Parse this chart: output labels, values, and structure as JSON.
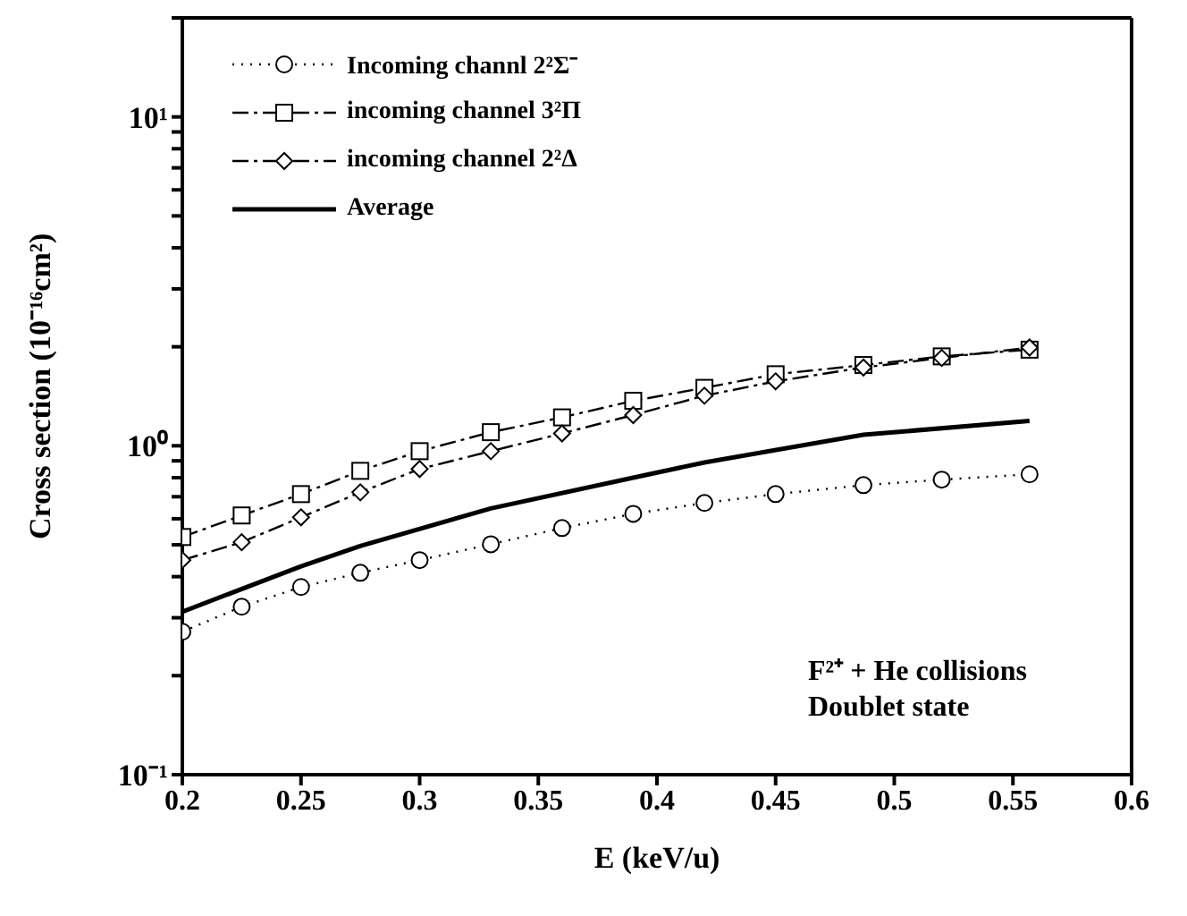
{
  "chart_data": {
    "type": "line",
    "xlabel": "E (keV/u)",
    "ylabel": "Cross section (10⁻¹⁶cm²)",
    "log": "y",
    "x": [
      0.2,
      0.225,
      0.25,
      0.275,
      0.3,
      0.33,
      0.36,
      0.39,
      0.42,
      0.45,
      0.487,
      0.52,
      0.557
    ],
    "series": [
      {
        "name": "Incoming channl 2²Σ⁻",
        "color": "#000000",
        "marker": "circle",
        "line_style": "dotted",
        "values": [
          0.272,
          0.324,
          0.372,
          0.411,
          0.449,
          0.502,
          0.562,
          0.621,
          0.67,
          0.713,
          0.759,
          0.789,
          0.819
        ]
      },
      {
        "name": "incoming channel 3²Π",
        "color": "#000000",
        "marker": "square",
        "line_style": "dashed",
        "values": [
          0.528,
          0.614,
          0.713,
          0.839,
          0.963,
          1.1,
          1.22,
          1.37,
          1.5,
          1.65,
          1.76,
          1.87,
          1.96
        ]
      },
      {
        "name": "incoming channel 2²Δ",
        "color": "#000000",
        "marker": "diamond",
        "line_style": "dashed",
        "values": [
          0.449,
          0.509,
          0.606,
          0.722,
          0.85,
          0.963,
          1.09,
          1.24,
          1.42,
          1.57,
          1.73,
          1.85,
          1.99
        ]
      },
      {
        "name": "Average",
        "color": "#000000",
        "marker": "none",
        "line_style": "solid",
        "x": [
          0.2,
          0.25,
          0.275,
          0.33,
          0.39,
          0.42,
          0.487,
          0.557
        ],
        "values": [
          0.313,
          0.43,
          0.496,
          0.645,
          0.8,
          0.89,
          1.08,
          1.19
        ]
      }
    ],
    "xlim": [
      0.2,
      0.6
    ],
    "xticks": [
      0.2,
      0.25,
      0.3,
      0.35,
      0.4,
      0.45,
      0.5,
      0.55,
      0.6
    ],
    "ylim": [
      0.1,
      20
    ],
    "yticks": [
      {
        "value": 0.1,
        "label": "10⁻¹"
      },
      {
        "value": 0.2,
        "label": null
      },
      {
        "value": 0.3,
        "label": null
      },
      {
        "value": 0.4,
        "label": null
      },
      {
        "value": 0.5,
        "label": null
      },
      {
        "value": 0.6,
        "label": null
      },
      {
        "value": 0.7,
        "label": null
      },
      {
        "value": 0.8,
        "label": null
      },
      {
        "value": 0.9,
        "label": null
      },
      {
        "value": 1,
        "label": "10⁰"
      },
      {
        "value": 2,
        "label": null
      },
      {
        "value": 3,
        "label": null
      },
      {
        "value": 4,
        "label": null
      },
      {
        "value": 5,
        "label": null
      },
      {
        "value": 6,
        "label": null
      },
      {
        "value": 7,
        "label": null
      },
      {
        "value": 8,
        "label": null
      },
      {
        "value": 9,
        "label": null
      },
      {
        "value": 10,
        "label": "10¹"
      },
      {
        "value": 20,
        "label": null
      }
    ],
    "grid": false,
    "legend": "top left",
    "annotations": [
      "F²⁺ + He collisions",
      "Doublet state"
    ]
  }
}
